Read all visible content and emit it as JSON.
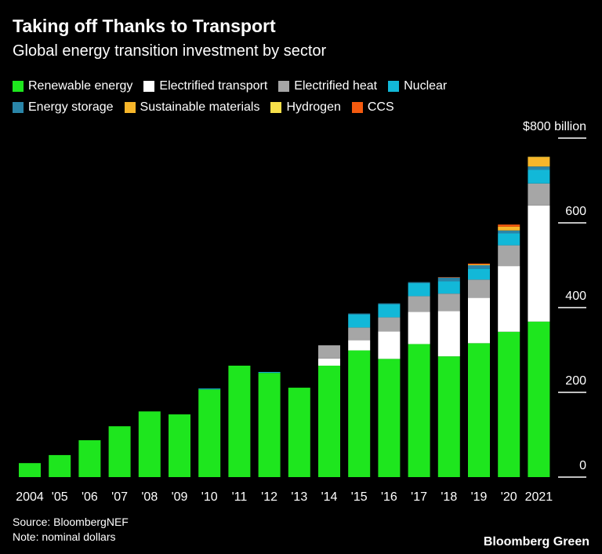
{
  "title": "Taking off Thanks to Transport",
  "subtitle": "Global energy transition investment by sector",
  "source": "Source: BloombergNEF",
  "note": "Note: nominal dollars",
  "brand": "Bloomberg Green",
  "chart_data": {
    "type": "bar",
    "stacked": true,
    "categories": [
      "2004",
      "'05",
      "'06",
      "'07",
      "'08",
      "'09",
      "'10",
      "'11",
      "'12",
      "'13",
      "'14",
      "'15",
      "'16",
      "'17",
      "'18",
      "'19",
      "'20",
      "2021"
    ],
    "ylim": [
      0,
      800
    ],
    "yticks": [
      0,
      200,
      400,
      600,
      800
    ],
    "ytick_labels": [
      "0",
      "200",
      "400",
      "600",
      "$800 billion"
    ],
    "legend_position": "top",
    "series": [
      {
        "name": "Renewable energy",
        "color": "#1ee61e",
        "values": [
          33,
          52,
          87,
          120,
          155,
          148,
          207,
          263,
          246,
          211,
          263,
          299,
          279,
          314,
          285,
          316,
          343,
          367
        ]
      },
      {
        "name": "Electrified transport",
        "color": "#ffffff",
        "values": [
          0,
          0,
          0,
          0,
          0,
          0,
          0,
          0,
          0,
          0,
          17,
          24,
          65,
          76,
          107,
          107,
          155,
          274
        ]
      },
      {
        "name": "Electrified heat",
        "color": "#a6a6a6",
        "values": [
          0,
          0,
          0,
          0,
          0,
          0,
          0,
          0,
          0,
          0,
          31,
          30,
          33,
          37,
          41,
          43,
          49,
          52
        ]
      },
      {
        "name": "Nuclear",
        "color": "#12b8d8",
        "values": [
          0,
          0,
          0,
          0,
          0,
          0,
          2,
          0,
          2,
          0,
          0,
          31,
          31,
          31,
          29,
          26,
          28,
          32
        ]
      },
      {
        "name": "Energy storage",
        "color": "#2a85a8",
        "values": [
          0,
          0,
          0,
          0,
          0,
          0,
          0,
          0,
          0,
          0,
          0,
          2,
          2,
          2,
          9,
          8,
          7,
          8
        ]
      },
      {
        "name": "Sustainable materials",
        "color": "#f7b62a",
        "values": [
          0,
          0,
          0,
          0,
          0,
          0,
          0,
          0,
          0,
          0,
          0,
          0,
          0,
          0,
          0,
          2,
          9,
          22
        ]
      },
      {
        "name": "Hydrogen",
        "color": "#f7e04a",
        "values": [
          0,
          0,
          0,
          0,
          0,
          0,
          0,
          0,
          0,
          0,
          0,
          0,
          0,
          0,
          0,
          0,
          0,
          1
        ]
      },
      {
        "name": "CCS",
        "color": "#f45a0f",
        "values": [
          0,
          0,
          0,
          0,
          0,
          0,
          0,
          0,
          0,
          0,
          0,
          0,
          0,
          0,
          1,
          2,
          5,
          0
        ]
      }
    ]
  }
}
